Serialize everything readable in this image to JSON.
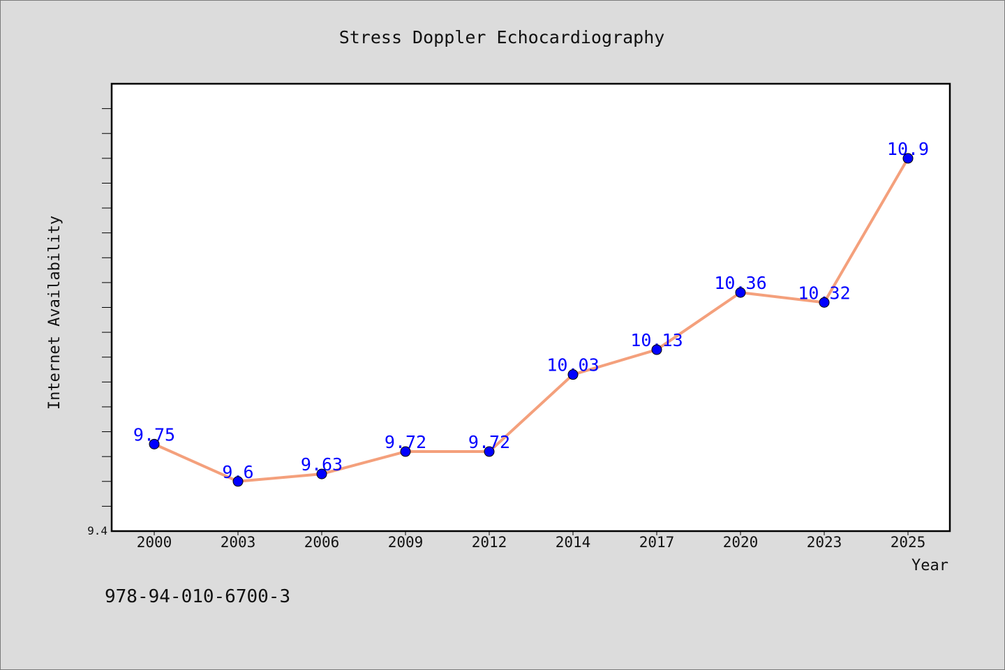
{
  "chart_data": {
    "type": "line",
    "title": "Stress Doppler Echocardiography",
    "xlabel": "Year",
    "ylabel": "Internet Availability",
    "categories": [
      "2000",
      "2003",
      "2006",
      "2009",
      "2012",
      "2014",
      "2017",
      "2020",
      "2023",
      "2025"
    ],
    "series": [
      {
        "values": [
          9.75,
          9.6,
          9.63,
          9.72,
          9.72,
          10.03,
          10.13,
          10.36,
          10.32,
          10.9
        ],
        "labels": [
          "9.75",
          "9.6",
          "9.63",
          "9.72",
          "9.72",
          "10.03",
          "10.13",
          "10.36",
          "10.32",
          "10.9"
        ]
      }
    ],
    "ylim": [
      9.4,
      11.2
    ],
    "ytick_labels": [
      "9.4"
    ],
    "grid": false,
    "line_color": "#f4a07c",
    "marker_color": "#0000ff",
    "label_color": "#0000ff"
  },
  "footer": {
    "text": "978-94-010-6700-3"
  }
}
